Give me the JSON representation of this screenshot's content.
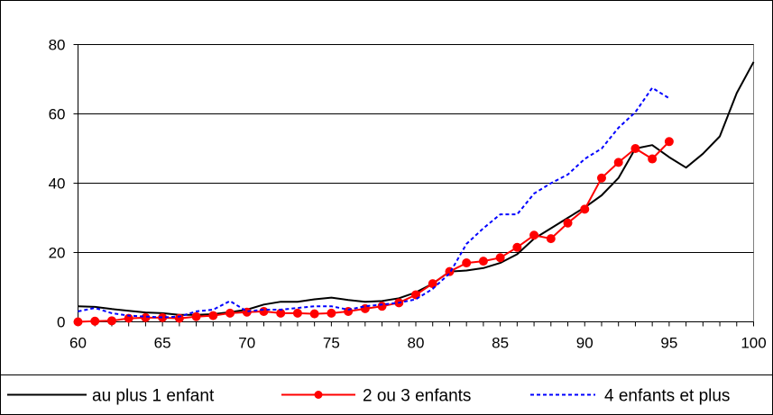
{
  "chart_data": {
    "type": "line",
    "title": "",
    "xlabel": "",
    "ylabel": "",
    "xlim": [
      60,
      100
    ],
    "ylim": [
      0,
      80
    ],
    "xticks": [
      60,
      65,
      70,
      75,
      80,
      85,
      90,
      95,
      100
    ],
    "xtick_labels": [
      "60",
      "65",
      "70",
      "75",
      "80",
      "85",
      "90",
      "95",
      "100"
    ],
    "yticks": [
      0,
      20,
      40,
      60,
      80
    ],
    "ytick_labels": [
      "0",
      "20",
      "40",
      "60",
      "80"
    ],
    "grid": "horizontal",
    "legend": "bottom",
    "series": [
      {
        "name": "au plus 1 enfant",
        "color": "#000000",
        "style": "solid",
        "x": [
          60,
          61,
          62,
          63,
          64,
          65,
          66,
          67,
          68,
          69,
          70,
          71,
          72,
          73,
          74,
          75,
          76,
          77,
          78,
          79,
          80,
          81,
          82,
          83,
          84,
          85,
          86,
          87,
          88,
          89,
          90,
          91,
          92,
          93,
          94,
          95,
          96,
          97,
          98,
          99,
          100
        ],
        "y": [
          4.5,
          4.3,
          3.7,
          3.2,
          2.7,
          2.5,
          2.0,
          2.0,
          2.2,
          2.8,
          3.5,
          5.0,
          5.8,
          5.8,
          6.5,
          7.0,
          6.3,
          5.8,
          6.0,
          6.8,
          8.5,
          11.0,
          14.5,
          14.8,
          15.5,
          17.0,
          19.5,
          24.0,
          27.0,
          30.0,
          33.0,
          36.5,
          41.5,
          50.0,
          51.0,
          47.5,
          44.5,
          48.5,
          53.5,
          66.0,
          75.0
        ]
      },
      {
        "name": "2 ou 3 enfants",
        "color": "#ff0000",
        "style": "solid-marker",
        "x": [
          60,
          61,
          62,
          63,
          64,
          65,
          66,
          67,
          68,
          69,
          70,
          71,
          72,
          73,
          74,
          75,
          76,
          77,
          78,
          79,
          80,
          81,
          82,
          83,
          84,
          85,
          86,
          87,
          88,
          89,
          90,
          91,
          92,
          93,
          94,
          95
        ],
        "y": [
          0.0,
          0.2,
          0.3,
          1.0,
          1.2,
          1.2,
          1.0,
          1.5,
          1.8,
          2.5,
          2.8,
          3.0,
          2.5,
          2.5,
          2.3,
          2.5,
          3.0,
          3.8,
          4.5,
          5.5,
          7.8,
          11.0,
          14.5,
          17.0,
          17.5,
          18.5,
          21.5,
          25.0,
          24.0,
          28.5,
          32.5,
          41.5,
          46.0,
          50.0,
          47.0,
          52.0
        ]
      },
      {
        "name": "4 enfants et plus",
        "color": "#0000ff",
        "style": "dashed",
        "x": [
          60,
          61,
          62,
          63,
          64,
          65,
          66,
          67,
          68,
          69,
          70,
          71,
          72,
          73,
          74,
          75,
          76,
          77,
          78,
          79,
          80,
          81,
          82,
          83,
          84,
          85,
          86,
          87,
          88,
          89,
          90,
          91,
          92,
          93,
          94,
          95
        ],
        "y": [
          3.0,
          4.0,
          2.5,
          1.8,
          1.5,
          1.3,
          1.5,
          3.0,
          3.5,
          6.0,
          3.0,
          3.5,
          3.5,
          4.0,
          4.5,
          4.5,
          3.5,
          4.5,
          5.0,
          5.5,
          6.5,
          9.5,
          14.0,
          22.5,
          27.0,
          31.0,
          31.0,
          37.0,
          40.0,
          42.5,
          47.0,
          50.0,
          56.0,
          60.5,
          67.5,
          64.5
        ]
      }
    ]
  }
}
